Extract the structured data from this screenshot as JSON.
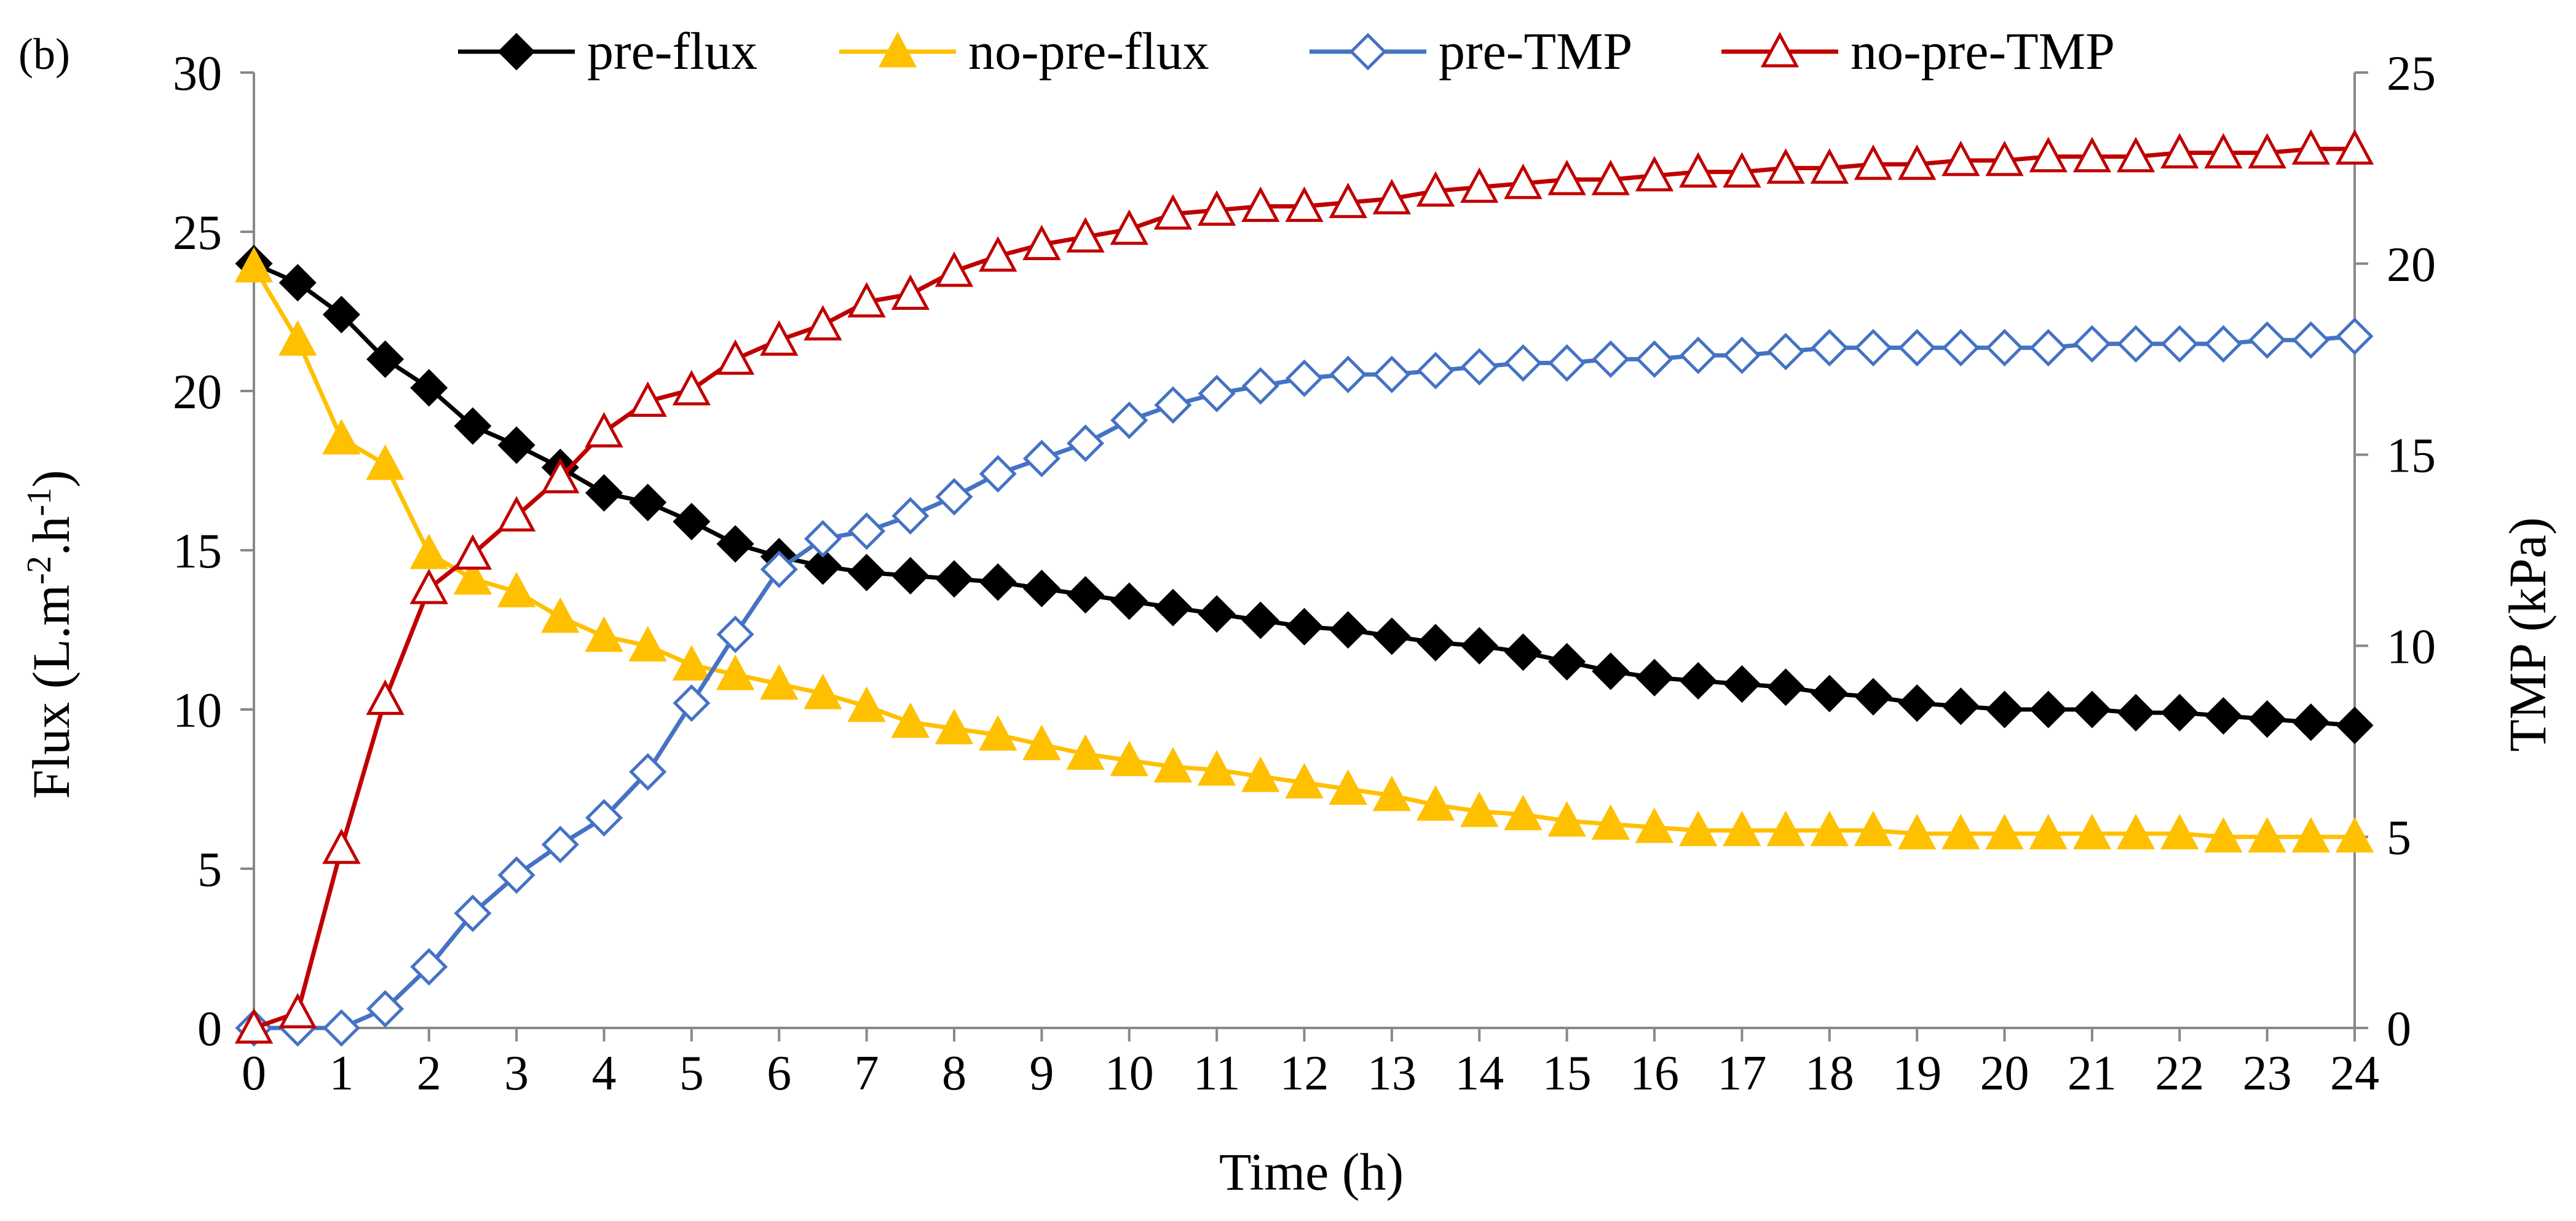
{
  "panel_label": "(b)",
  "chart_data": {
    "type": "line",
    "title": "",
    "xlabel": "Time (h)",
    "ylabel_left": {
      "base": "Flux (L.m",
      "sup1": "-2",
      "mid": ".h",
      "sup2": "-1",
      "end": ")"
    },
    "ylabel_right": "TMP (kPa)",
    "x_ticks": [
      "0",
      "1",
      "2",
      "3",
      "4",
      "5",
      "6",
      "7",
      "8",
      "9",
      "10",
      "11",
      "12",
      "13",
      "14",
      "15",
      "16",
      "17",
      "18",
      "19",
      "20",
      "21",
      "22",
      "23",
      "24"
    ],
    "y_left_ticks": [
      "0",
      "5",
      "10",
      "15",
      "20",
      "25",
      "30"
    ],
    "y_right_ticks": [
      "0",
      "5",
      "10",
      "15",
      "20",
      "25"
    ],
    "xlim": [
      0,
      24
    ],
    "ylim_left": [
      0,
      30
    ],
    "ylim_right": [
      0,
      25
    ],
    "grid": false,
    "legend_position": "top",
    "x": [
      0,
      0.5,
      1,
      1.5,
      2,
      2.5,
      3,
      3.5,
      4,
      4.5,
      5,
      5.5,
      6,
      6.5,
      7,
      7.5,
      8,
      8.5,
      9,
      9.5,
      10,
      10.5,
      11,
      11.5,
      12,
      12.5,
      13,
      13.5,
      14,
      14.5,
      15,
      15.5,
      16,
      16.5,
      17,
      17.5,
      18,
      18.5,
      19,
      19.5,
      20,
      20.5,
      21,
      21.5,
      22,
      22.5,
      23,
      23.5,
      24
    ],
    "series": [
      {
        "name": "pre-flux",
        "axis": "left",
        "color": "#000000",
        "marker": "diamond",
        "filled": true,
        "values": [
          24.0,
          23.4,
          22.4,
          21.0,
          20.1,
          18.9,
          18.3,
          17.6,
          16.8,
          16.5,
          15.9,
          15.2,
          14.8,
          14.5,
          14.3,
          14.2,
          14.1,
          14.0,
          13.8,
          13.6,
          13.4,
          13.2,
          13.0,
          12.8,
          12.6,
          12.5,
          12.3,
          12.1,
          12.0,
          11.8,
          11.5,
          11.2,
          11.0,
          10.9,
          10.8,
          10.7,
          10.5,
          10.4,
          10.2,
          10.1,
          10.0,
          10.0,
          10.0,
          9.9,
          9.9,
          9.8,
          9.7,
          9.6,
          9.5
        ]
      },
      {
        "name": "no-pre-flux",
        "axis": "left",
        "color": "#FFC000",
        "marker": "triangle",
        "filled": true,
        "values": [
          23.9,
          21.6,
          18.5,
          17.7,
          14.9,
          14.1,
          13.7,
          12.9,
          12.3,
          12.0,
          11.4,
          11.1,
          10.8,
          10.5,
          10.1,
          9.6,
          9.4,
          9.2,
          8.9,
          8.6,
          8.4,
          8.2,
          8.1,
          7.9,
          7.7,
          7.5,
          7.3,
          7.0,
          6.8,
          6.7,
          6.5,
          6.4,
          6.3,
          6.2,
          6.2,
          6.2,
          6.2,
          6.2,
          6.1,
          6.1,
          6.1,
          6.1,
          6.1,
          6.1,
          6.1,
          6.0,
          6.0,
          6.0,
          6.0
        ]
      },
      {
        "name": "pre-TMP",
        "axis": "right",
        "color": "#4472C4",
        "marker": "diamond",
        "filled": false,
        "values": [
          0.0,
          0.0,
          0.0,
          0.5,
          1.6,
          3.0,
          4.0,
          4.8,
          5.5,
          6.7,
          8.5,
          10.3,
          12.0,
          12.8,
          13.0,
          13.4,
          13.9,
          14.5,
          14.9,
          15.3,
          15.9,
          16.3,
          16.6,
          16.8,
          17.0,
          17.1,
          17.1,
          17.2,
          17.3,
          17.4,
          17.4,
          17.5,
          17.5,
          17.6,
          17.6,
          17.7,
          17.8,
          17.8,
          17.8,
          17.8,
          17.8,
          17.8,
          17.9,
          17.9,
          17.9,
          17.9,
          18.0,
          18.0,
          18.1
        ]
      },
      {
        "name": "no-pre-TMP",
        "axis": "right",
        "color": "#C00000",
        "marker": "triangle",
        "filled": false,
        "values": [
          0.0,
          0.4,
          4.7,
          8.6,
          11.5,
          12.4,
          13.4,
          14.4,
          15.6,
          16.4,
          16.7,
          17.5,
          18.0,
          18.4,
          19.0,
          19.2,
          19.8,
          20.2,
          20.5,
          20.7,
          20.9,
          21.3,
          21.4,
          21.5,
          21.5,
          21.6,
          21.7,
          21.9,
          22.0,
          22.1,
          22.2,
          22.2,
          22.3,
          22.4,
          22.4,
          22.5,
          22.5,
          22.6,
          22.6,
          22.7,
          22.7,
          22.8,
          22.8,
          22.8,
          22.9,
          22.9,
          22.9,
          23.0,
          23.0
        ]
      }
    ]
  }
}
